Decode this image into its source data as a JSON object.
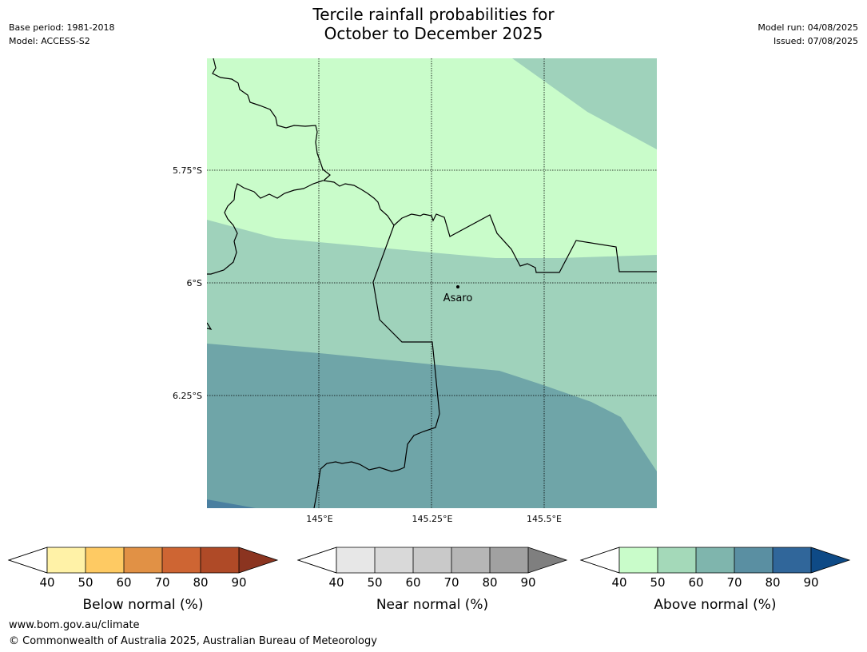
{
  "header": {
    "title_line1": "Tercile rainfall probabilities for",
    "title_line2": "October to December 2025",
    "base_period": "Base period: 1981-2018",
    "model": "Model: ACCESS-S2",
    "model_run": "Model run: 04/08/2025",
    "issued": "Issued: 07/08/2025"
  },
  "map": {
    "lon_ticks": [
      "145°E",
      "145.25°E",
      "145.5°E"
    ],
    "lat_ticks": [
      "5.75°S",
      "6°S",
      "6.25°S"
    ],
    "place_label": "Asaro",
    "colors": {
      "above_40_50": "#c9fcca",
      "above_50_60": "#9fd2bb",
      "above_60_70": "#6fa5a8",
      "above_70_80": "#4a7fa0"
    }
  },
  "colorbars": [
    {
      "id": "below",
      "label": "Below normal (%)",
      "ticks": [
        "40",
        "50",
        "60",
        "70",
        "80",
        "90"
      ],
      "colors": [
        "#fff2a7",
        "#feca63",
        "#e19145",
        "#ce6533",
        "#af4a27",
        "#8b3420"
      ]
    },
    {
      "id": "near",
      "label": "Near normal (%)",
      "ticks": [
        "40",
        "50",
        "60",
        "70",
        "80",
        "90"
      ],
      "colors": [
        "#e7e7e7",
        "#d9d9d9",
        "#c9c9c9",
        "#b6b6b6",
        "#a1a1a1",
        "#7f7f7f"
      ]
    },
    {
      "id": "above",
      "label": "Above normal (%)",
      "ticks": [
        "40",
        "50",
        "60",
        "70",
        "80",
        "90"
      ],
      "colors": [
        "#c9fcca",
        "#a4d9b9",
        "#7fb5ad",
        "#5a8fa2",
        "#30669a",
        "#0e4a86"
      ]
    }
  ],
  "footer": {
    "url": "www.bom.gov.au/climate",
    "copyright": "© Commonwealth of Australia 2025, Australian Bureau of Meteorology"
  }
}
